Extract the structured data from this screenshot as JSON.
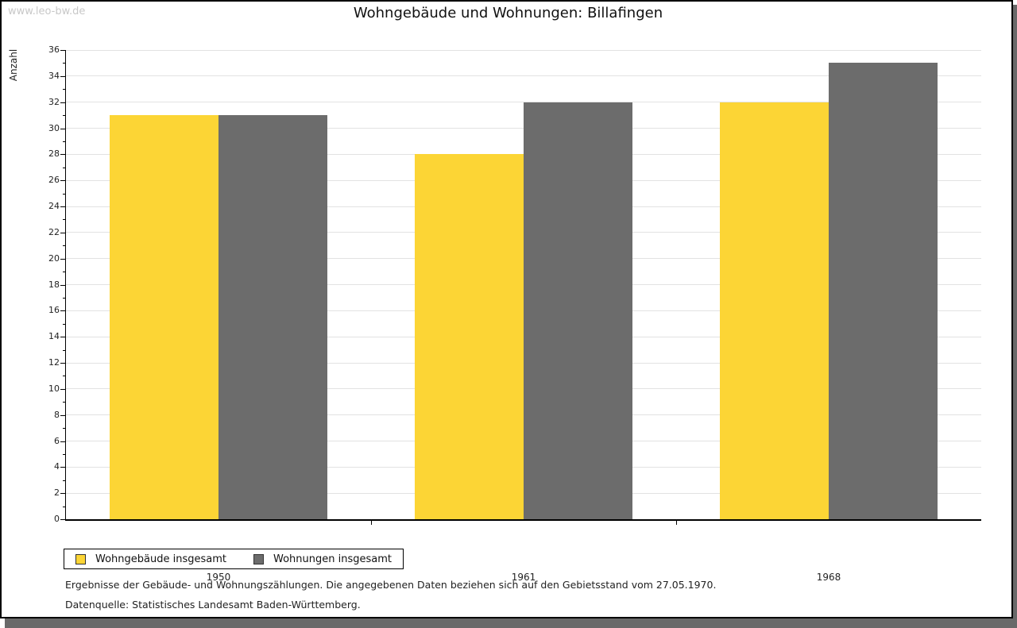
{
  "page": {
    "watermark": "www.leo-bw.de",
    "title": "Wohngebäude und Wohnungen: Billafingen"
  },
  "chart_data": {
    "type": "bar",
    "title": "Wohngebäude und Wohnungen: Billafingen",
    "categories": [
      "1950",
      "1961",
      "1968"
    ],
    "series": [
      {
        "name": "Wohngebäude insgesamt",
        "color": "#FCD535",
        "values": [
          31,
          28,
          32
        ]
      },
      {
        "name": "Wohnungen insgesamt",
        "color": "#6C6C6C",
        "values": [
          31,
          32,
          35
        ]
      }
    ],
    "xlabel": "",
    "ylabel": "Anzahl",
    "ylim": [
      0,
      36
    ],
    "ytick_step": 2,
    "yminor_step": 1,
    "grid": true,
    "legend_position": "bottom-left"
  },
  "footnotes": {
    "note": "Ergebnisse der Gebäude- und Wohnungszählungen. Die angegebenen Daten beziehen sich auf den Gebietsstand vom 27.05.1970.",
    "source": "Datenquelle: Statistisches Landesamt Baden-Württemberg."
  },
  "colors": {
    "series_wohngebaeude": "#FCD535",
    "series_wohnungen": "#6C6C6C",
    "grid": "#E2E2E2",
    "axis": "#000000",
    "watermark": "#C8C8C8",
    "page_shadow": "#696969"
  }
}
